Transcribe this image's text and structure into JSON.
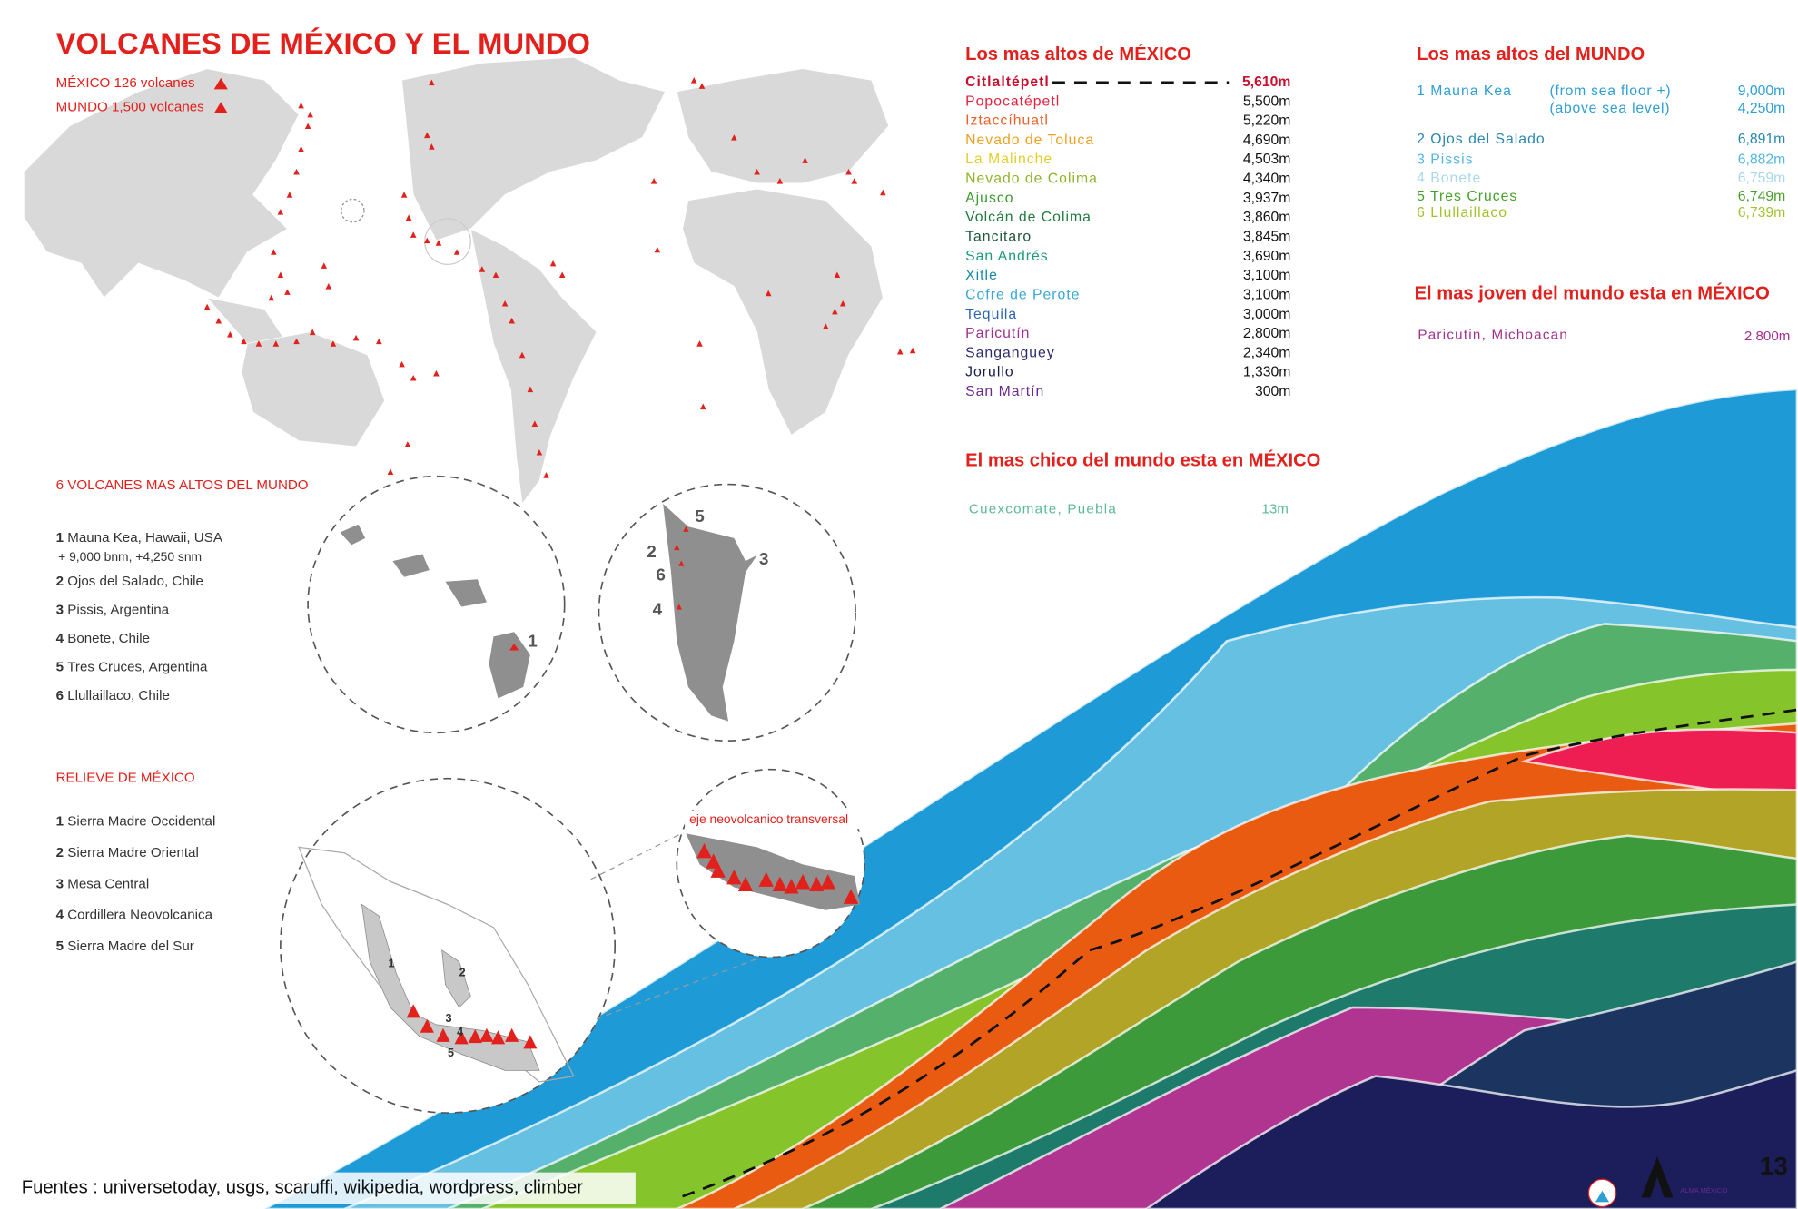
{
  "header": {
    "title": "VOLCANES DE MÉXICO Y EL MUNDO",
    "legend": [
      "MÉXICO 126 volcanes",
      "MUNDO 1,500 volcanes"
    ]
  },
  "world_top6": {
    "title": "6 VOLCANES MAS ALTOS DEL MUNDO",
    "items": [
      {
        "num": "1",
        "text": "Mauna Kea, Hawaii, USA",
        "note": "+ 9,000 bnm, +4,250 snm"
      },
      {
        "num": "2",
        "text": "Ojos del Salado, Chile"
      },
      {
        "num": "3",
        "text": "Pissis, Argentina"
      },
      {
        "num": "4",
        "text": "Bonete, Chile"
      },
      {
        "num": "5",
        "text": "Tres Cruces, Argentina"
      },
      {
        "num": "6",
        "text": "Llullaillaco, Chile"
      }
    ],
    "hawaii_label": "1",
    "andes_labels": [
      "5",
      "2",
      "6",
      "3",
      "4"
    ]
  },
  "relief": {
    "title": "RELIEVE DE MÉXICO",
    "items": [
      {
        "num": "1",
        "text": "Sierra Madre Occidental"
      },
      {
        "num": "2",
        "text": "Sierra Madre Oriental"
      },
      {
        "num": "3",
        "text": "Mesa Central"
      },
      {
        "num": "4",
        "text": "Cordillera Neovolcanica"
      },
      {
        "num": "5",
        "text": "Sierra Madre del Sur"
      }
    ],
    "map_labels": [
      "1",
      "2",
      "3",
      "4",
      "5"
    ],
    "eje_label": "eje neovolcanico transversal"
  },
  "mexico_highest": {
    "title": "Los mas altos de MÉXICO",
    "items": [
      {
        "name": "Citlaltépetl",
        "height": "5,610m",
        "color": "#c8102e"
      },
      {
        "name": "Popocatépetl",
        "height": "5,500m",
        "color": "#e5213f"
      },
      {
        "name": "Iztaccíhuatl",
        "height": "5,220m",
        "color": "#e8602a"
      },
      {
        "name": "Nevado de Toluca",
        "height": "4,690m",
        "color": "#f0a021"
      },
      {
        "name": "La Malinche",
        "height": "4,503m",
        "color": "#e3cd2b"
      },
      {
        "name": "Nevado de Colima",
        "height": "4,340m",
        "color": "#8fb42a"
      },
      {
        "name": "Ajusco",
        "height": "3,937m",
        "color": "#3a9a2e"
      },
      {
        "name": "Volcán de Colima",
        "height": "3,860m",
        "color": "#1f7a3c"
      },
      {
        "name": "Tancitaro",
        "height": "3,845m",
        "color": "#1b573a"
      },
      {
        "name": "San Andrés",
        "height": "3,690m",
        "color": "#1a9a7a"
      },
      {
        "name": "Xitle",
        "height": "3,100m",
        "color": "#178aa2"
      },
      {
        "name": "Cofre de Perote",
        "height": "3,100m",
        "color": "#3aa8d2"
      },
      {
        "name": "Tequila",
        "height": "3,000m",
        "color": "#2a66b0"
      },
      {
        "name": "Paricutín",
        "height": "2,800m",
        "color": "#a2308c"
      },
      {
        "name": "Sanganguey",
        "height": "2,340m",
        "color": "#2b2b6b"
      },
      {
        "name": "Jorullo",
        "height": "1,330m",
        "color": "#1b1b4b"
      },
      {
        "name": "San Martín",
        "height": "300m",
        "color": "#6b2a8c"
      }
    ]
  },
  "smallest": {
    "title": "El mas chico del mundo esta en MÉXICO",
    "name": "Cuexcomate, Puebla",
    "height": "13m",
    "color": "#5cb89a"
  },
  "world_highest": {
    "title": "Los mas altos del MUNDO",
    "items": [
      {
        "name": "1 Mauna Kea",
        "notes": [
          "(from sea floor +)",
          "(above sea level)"
        ],
        "heights": [
          "9,000m",
          "4,250m"
        ],
        "color": "#2f9fd3"
      },
      {
        "name": "2 Ojos del Salado",
        "heights": [
          "6,891m"
        ],
        "color": "#2a86b0"
      },
      {
        "name": "3 Pissis",
        "heights": [
          "6,882m"
        ],
        "color": "#55b6e0"
      },
      {
        "name": "4 Bonete",
        "heights": [
          "6,759m"
        ],
        "color": "#a9d8e8"
      },
      {
        "name": "5 Tres Cruces",
        "heights": [
          "6,749m"
        ],
        "color": "#46a02a"
      },
      {
        "name": "6 Llullaillaco",
        "heights": [
          "6,739m"
        ],
        "color": "#a1c22e"
      }
    ]
  },
  "youngest": {
    "title": "El mas joven del mundo esta en MÉXICO",
    "name": "Paricutin, Michoacan",
    "height": "2,800m",
    "color": "#a2308c"
  },
  "footer": {
    "sources": "Fuentes : universetoday, usgs, scaruffi, wikipedia, wordpress, climber",
    "logo": "ALMA MÉXICO",
    "page": "13"
  }
}
